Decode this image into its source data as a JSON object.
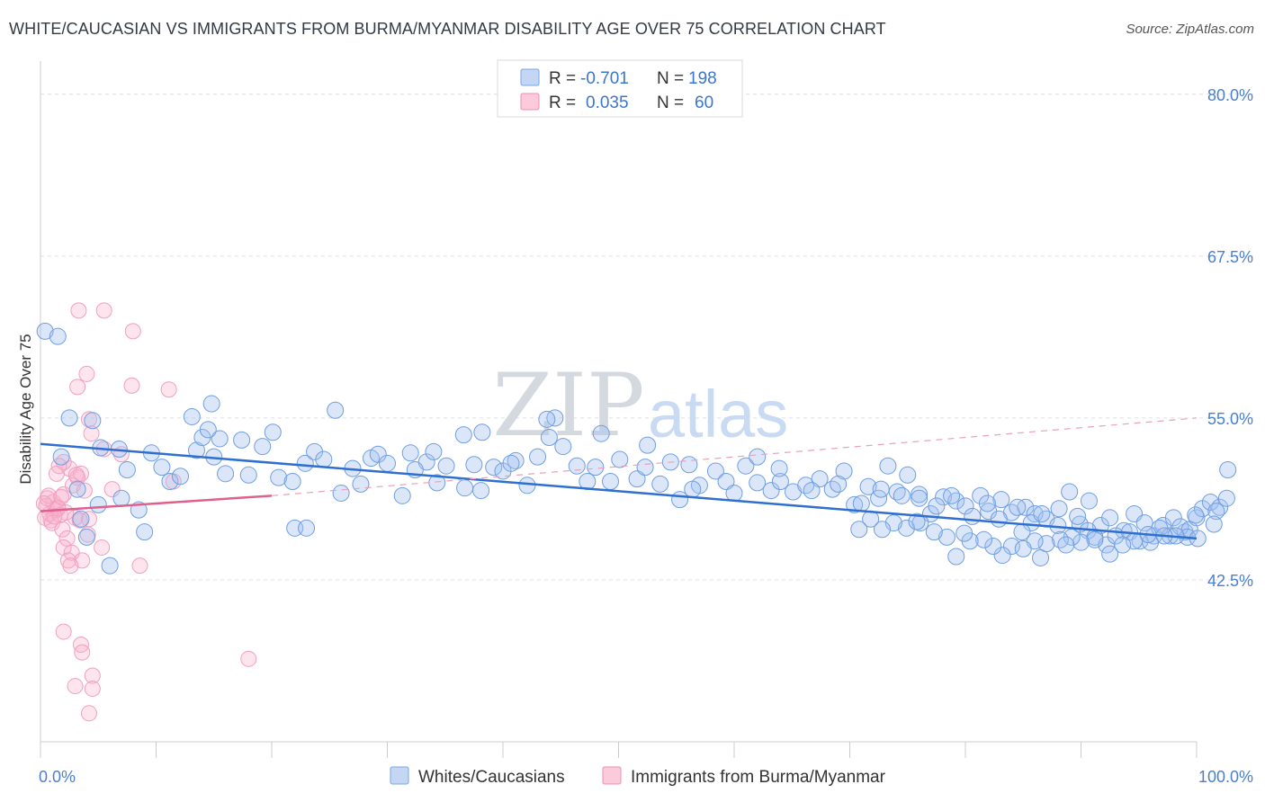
{
  "header": {
    "title": "WHITE/CAUCASIAN VS IMMIGRANTS FROM BURMA/MYANMAR DISABILITY AGE OVER 75 CORRELATION CHART",
    "source": "Source: ZipAtlas.com"
  },
  "watermark": {
    "zip": "ZIP",
    "atlas": "atlas"
  },
  "legend_top": {
    "r_label": "R =",
    "n_label": "N =",
    "rows": [
      {
        "r": "-0.701",
        "n": "198",
        "color": "#7aa6e8"
      },
      {
        "r": "0.035",
        "n": "60",
        "color": "#f08cb0"
      }
    ]
  },
  "legend_bottom": [
    {
      "label": "Whites/Caucasians",
      "color": "#7aa6e8"
    },
    {
      "label": "Immigrants from Burma/Myanmar",
      "color": "#f08cb0"
    }
  ],
  "chart_data": {
    "type": "scatter",
    "title": "WHITE/CAUCASIAN VS IMMIGRANTS FROM BURMA/MYANMAR DISABILITY AGE OVER 75 CORRELATION CHART",
    "ylabel": "Disability Age Over 75",
    "xlabel": "",
    "xlim": [
      0,
      100
    ],
    "ylim": [
      30,
      82
    ],
    "y_ticks": [
      42.5,
      55.0,
      67.5,
      80.0
    ],
    "y_tick_labels": [
      "42.5%",
      "55.0%",
      "67.5%",
      "80.0%"
    ],
    "x_tick_labels": [
      "0.0%",
      "100.0%"
    ],
    "grid": true,
    "legend_position": "top-center",
    "colors": {
      "blue": "#7aa6e8",
      "blue_line": "#2f6fd0",
      "pink": "#f08cb0",
      "pink_line": "#e0608c"
    },
    "series": [
      {
        "name": "Whites/Caucasians",
        "color": "#7aa6e8",
        "trend": {
          "x": [
            0,
            100
          ],
          "y": [
            53.0,
            45.7
          ]
        },
        "points": [
          [
            0.4,
            61.7
          ],
          [
            1.5,
            61.3
          ],
          [
            2.5,
            55.0
          ],
          [
            4.5,
            54.8
          ],
          [
            1.8,
            52.0
          ],
          [
            3.2,
            49.5
          ],
          [
            5.2,
            52.7
          ],
          [
            6.8,
            52.6
          ],
          [
            7.5,
            51.0
          ],
          [
            9.6,
            52.3
          ],
          [
            10.5,
            51.2
          ],
          [
            11.2,
            50.1
          ],
          [
            12.1,
            50.5
          ],
          [
            13.5,
            52.5
          ],
          [
            14.0,
            53.5
          ],
          [
            15.5,
            53.4
          ],
          [
            16.0,
            50.7
          ],
          [
            17.4,
            53.3
          ],
          [
            18.0,
            50.6
          ],
          [
            19.2,
            52.8
          ],
          [
            20.1,
            53.9
          ],
          [
            20.6,
            50.4
          ],
          [
            21.8,
            50.1
          ],
          [
            22.9,
            51.5
          ],
          [
            23.7,
            52.4
          ],
          [
            24.5,
            51.8
          ],
          [
            26.0,
            49.2
          ],
          [
            27.0,
            51.1
          ],
          [
            27.7,
            49.9
          ],
          [
            28.6,
            51.9
          ],
          [
            29.2,
            52.2
          ],
          [
            30.0,
            51.5
          ],
          [
            31.3,
            49.0
          ],
          [
            32.0,
            52.3
          ],
          [
            33.4,
            51.6
          ],
          [
            34.3,
            50.0
          ],
          [
            35.1,
            51.3
          ],
          [
            36.7,
            49.6
          ],
          [
            37.5,
            51.4
          ],
          [
            38.1,
            49.4
          ],
          [
            39.2,
            51.2
          ],
          [
            40.0,
            50.9
          ],
          [
            41.1,
            51.7
          ],
          [
            42.1,
            49.8
          ],
          [
            43.0,
            52.0
          ],
          [
            44.0,
            53.5
          ],
          [
            45.2,
            52.8
          ],
          [
            46.4,
            51.3
          ],
          [
            47.3,
            50.1
          ],
          [
            48.0,
            51.2
          ],
          [
            49.3,
            50.1
          ],
          [
            50.1,
            51.8
          ],
          [
            51.6,
            50.3
          ],
          [
            52.3,
            51.2
          ],
          [
            53.6,
            49.9
          ],
          [
            54.5,
            51.6
          ],
          [
            55.3,
            48.7
          ],
          [
            56.1,
            51.4
          ],
          [
            57.0,
            49.8
          ],
          [
            58.4,
            50.9
          ],
          [
            59.3,
            50.1
          ],
          [
            60.0,
            49.2
          ],
          [
            61.0,
            51.3
          ],
          [
            62.0,
            50.0
          ],
          [
            63.2,
            49.4
          ],
          [
            64.0,
            50.1
          ],
          [
            65.1,
            49.3
          ],
          [
            66.2,
            49.8
          ],
          [
            67.4,
            50.3
          ],
          [
            68.5,
            49.5
          ],
          [
            69.5,
            50.9
          ],
          [
            70.4,
            48.3
          ],
          [
            71.6,
            49.7
          ],
          [
            72.5,
            48.8
          ],
          [
            73.3,
            51.3
          ],
          [
            74.1,
            49.3
          ],
          [
            75.0,
            50.6
          ],
          [
            76.0,
            49.1
          ],
          [
            77.0,
            47.6
          ],
          [
            78.1,
            48.9
          ],
          [
            79.2,
            48.6
          ],
          [
            80.0,
            48.2
          ],
          [
            81.3,
            49.0
          ],
          [
            82.0,
            47.8
          ],
          [
            83.1,
            48.7
          ],
          [
            84.0,
            47.7
          ],
          [
            85.2,
            48.1
          ],
          [
            86.0,
            47.6
          ],
          [
            87.0,
            47.2
          ],
          [
            88.1,
            48.0
          ],
          [
            89.0,
            49.3
          ],
          [
            89.9,
            46.8
          ],
          [
            90.7,
            48.6
          ],
          [
            91.7,
            46.7
          ],
          [
            92.5,
            47.3
          ],
          [
            93.7,
            46.3
          ],
          [
            94.6,
            47.6
          ],
          [
            95.5,
            46.9
          ],
          [
            96.3,
            45.9
          ],
          [
            97.1,
            46.7
          ],
          [
            98.0,
            47.3
          ],
          [
            99.0,
            46.2
          ],
          [
            5.0,
            48.3
          ],
          [
            7.0,
            48.8
          ],
          [
            8.5,
            47.9
          ],
          [
            9.0,
            46.2
          ],
          [
            4.0,
            45.8
          ],
          [
            3.5,
            47.2
          ],
          [
            6.0,
            43.6
          ],
          [
            22.0,
            46.5
          ],
          [
            23.0,
            46.5
          ],
          [
            25.5,
            55.6
          ],
          [
            44.5,
            55.0
          ],
          [
            48.5,
            53.8
          ],
          [
            43.8,
            54.9
          ],
          [
            38.2,
            53.9
          ],
          [
            36.6,
            53.7
          ],
          [
            14.8,
            56.1
          ],
          [
            13.1,
            55.1
          ],
          [
            14.5,
            54.1
          ],
          [
            15.0,
            52.0
          ],
          [
            52.5,
            52.9
          ],
          [
            62.0,
            52.0
          ],
          [
            34.0,
            52.4
          ],
          [
            32.4,
            51.0
          ],
          [
            40.7,
            51.5
          ],
          [
            56.4,
            49.5
          ],
          [
            63.9,
            51.1
          ],
          [
            66.7,
            49.4
          ],
          [
            69.0,
            49.9
          ],
          [
            71.0,
            48.4
          ],
          [
            72.7,
            49.5
          ],
          [
            74.5,
            49.0
          ],
          [
            76.0,
            48.8
          ],
          [
            77.5,
            48.2
          ],
          [
            78.8,
            49.0
          ],
          [
            80.6,
            47.4
          ],
          [
            81.9,
            48.4
          ],
          [
            82.9,
            47.2
          ],
          [
            84.5,
            48.1
          ],
          [
            85.7,
            46.9
          ],
          [
            86.6,
            47.6
          ],
          [
            88.0,
            46.7
          ],
          [
            89.7,
            47.4
          ],
          [
            90.6,
            46.3
          ],
          [
            91.2,
            45.8
          ],
          [
            92.2,
            45.2
          ],
          [
            93.0,
            45.9
          ],
          [
            94.2,
            46.2
          ],
          [
            95.1,
            45.5
          ],
          [
            96.0,
            45.4
          ],
          [
            96.8,
            46.5
          ],
          [
            97.7,
            45.9
          ],
          [
            98.6,
            46.6
          ],
          [
            99.4,
            46.4
          ],
          [
            100.0,
            47.3
          ],
          [
            100.5,
            48.0
          ],
          [
            101.2,
            48.5
          ],
          [
            102.0,
            48.1
          ],
          [
            102.6,
            48.8
          ],
          [
            99.9,
            47.5
          ],
          [
            101.7,
            47.8
          ],
          [
            99.2,
            45.8
          ],
          [
            98.2,
            45.9
          ],
          [
            97.2,
            45.9
          ],
          [
            95.8,
            46.0
          ],
          [
            94.6,
            45.5
          ],
          [
            93.6,
            45.2
          ],
          [
            92.5,
            44.5
          ],
          [
            91.2,
            45.6
          ],
          [
            90.0,
            45.4
          ],
          [
            89.2,
            45.8
          ],
          [
            88.2,
            45.6
          ],
          [
            87.0,
            45.3
          ],
          [
            86.0,
            45.5
          ],
          [
            84.9,
            46.2
          ],
          [
            84.0,
            45.1
          ],
          [
            83.2,
            44.4
          ],
          [
            82.4,
            45.1
          ],
          [
            81.6,
            45.6
          ],
          [
            80.4,
            45.5
          ],
          [
            79.2,
            44.3
          ],
          [
            78.4,
            45.8
          ],
          [
            77.3,
            46.2
          ],
          [
            76.1,
            46.9
          ],
          [
            74.9,
            46.5
          ],
          [
            73.8,
            46.9
          ],
          [
            72.8,
            46.4
          ],
          [
            71.8,
            47.2
          ],
          [
            70.8,
            46.4
          ],
          [
            102.7,
            51.0
          ],
          [
            85.0,
            44.9
          ],
          [
            88.7,
            45.2
          ],
          [
            101.5,
            46.8
          ],
          [
            100.1,
            45.7
          ],
          [
            86.5,
            44.2
          ],
          [
            75.8,
            47.0
          ],
          [
            79.9,
            46.1
          ]
        ]
      },
      {
        "name": "Immigrants from Burma/Myanmar",
        "color": "#f08cb0",
        "trend": {
          "x": [
            0,
            20
          ],
          "y": [
            47.8,
            49.0
          ],
          "dashed_to": [
            100,
            55.0
          ]
        },
        "points": [
          [
            0.5,
            48.2
          ],
          [
            0.8,
            47.6
          ],
          [
            0.9,
            47.1
          ],
          [
            1.1,
            48.5
          ],
          [
            1.3,
            47.9
          ],
          [
            0.4,
            47.3
          ],
          [
            0.6,
            48.8
          ],
          [
            1.0,
            46.9
          ],
          [
            1.5,
            48.1
          ],
          [
            1.7,
            47.5
          ],
          [
            2.0,
            49.1
          ],
          [
            1.4,
            50.7
          ],
          [
            2.5,
            51.1
          ],
          [
            3.2,
            50.4
          ],
          [
            3.5,
            50.7
          ],
          [
            2.8,
            49.8
          ],
          [
            1.9,
            46.4
          ],
          [
            2.3,
            45.7
          ],
          [
            3.8,
            49.4
          ],
          [
            4.2,
            47.2
          ],
          [
            3.0,
            47.3
          ],
          [
            2.0,
            45.0
          ],
          [
            2.7,
            44.6
          ],
          [
            2.4,
            44.0
          ],
          [
            3.6,
            44.0
          ],
          [
            2.6,
            43.6
          ],
          [
            5.3,
            45.0
          ],
          [
            8.6,
            43.6
          ],
          [
            3.3,
            63.3
          ],
          [
            5.5,
            63.3
          ],
          [
            8.0,
            61.7
          ],
          [
            4.0,
            58.4
          ],
          [
            3.2,
            57.4
          ],
          [
            7.9,
            57.5
          ],
          [
            11.1,
            57.2
          ],
          [
            4.2,
            54.9
          ],
          [
            4.4,
            53.8
          ],
          [
            5.5,
            52.6
          ],
          [
            7.0,
            52.2
          ],
          [
            2.0,
            51.6
          ],
          [
            1.6,
            51.3
          ],
          [
            3.1,
            50.6
          ],
          [
            6.2,
            49.5
          ],
          [
            11.5,
            50.1
          ],
          [
            18.0,
            36.4
          ],
          [
            2.0,
            38.5
          ],
          [
            3.5,
            37.5
          ],
          [
            3.6,
            36.9
          ],
          [
            4.5,
            35.1
          ],
          [
            4.5,
            34.1
          ],
          [
            3.0,
            34.3
          ],
          [
            4.2,
            32.2
          ],
          [
            1.5,
            48.0
          ],
          [
            0.7,
            49.0
          ],
          [
            2.2,
            47.7
          ],
          [
            1.2,
            47.4
          ],
          [
            0.3,
            48.4
          ],
          [
            1.8,
            48.9
          ],
          [
            3.4,
            47.1
          ],
          [
            4.1,
            46.0
          ]
        ]
      }
    ]
  }
}
